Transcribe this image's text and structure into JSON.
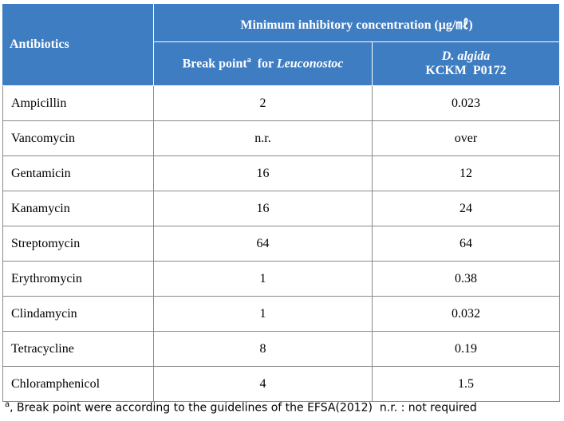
{
  "table": {
    "header": {
      "first": "Antibiotics",
      "group": "Minimum inhibitory concentration (μg/㎖)",
      "break_point": {
        "text": "Break point",
        "sup": "a",
        "for": "for",
        "genus": "Leuconostoc"
      },
      "strain": {
        "species": "D. algida",
        "code": "KCKM  P0172"
      }
    },
    "rows": [
      [
        "Ampicillin",
        2,
        0.023
      ],
      [
        "Vancomycin",
        "n.r.",
        "over"
      ],
      [
        "Gentamicin",
        16,
        12
      ],
      [
        "Kanamycin",
        16,
        24
      ],
      [
        "Streptomycin",
        64,
        64
      ],
      [
        "Erythromycin",
        1,
        0.38
      ],
      [
        "Clindamycin",
        1,
        0.032
      ],
      [
        "Tetracycline",
        8,
        0.19
      ],
      [
        "Chloramphenicol",
        4,
        1.5
      ]
    ],
    "footnote": {
      "sup": "a",
      "text": ", Break point were according to the guidelines of the EFSA(2012)  n.r. : not required"
    }
  }
}
